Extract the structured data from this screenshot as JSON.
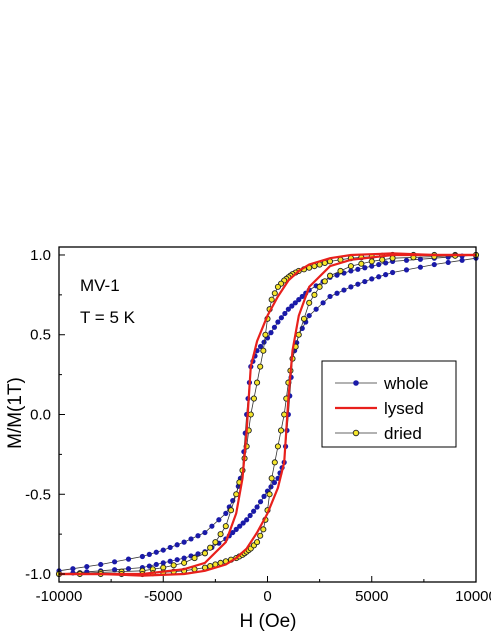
{
  "chart_data": {
    "type": "line",
    "title": "",
    "xlabel": "H (Oe)",
    "ylabel": "M/M(1T)",
    "xlim": [
      -10000,
      10000
    ],
    "ylim": [
      -1.05,
      1.05
    ],
    "xticks": [
      -10000,
      -5000,
      0,
      5000,
      10000
    ],
    "xtick_labels": [
      "-10000",
      "-5000",
      "0",
      "5000",
      "10000"
    ],
    "yticks": [
      -1.0,
      -0.5,
      0.0,
      0.5,
      1.0
    ],
    "ytick_labels": [
      "-1.0",
      "-0.5",
      "0.0",
      "0.5",
      "1.0"
    ],
    "grid": false,
    "legend_position": "center-right",
    "annotations": [
      "MV-1",
      "T = 5 K"
    ],
    "series": [
      {
        "name": "whole",
        "color": "#1a1aa8",
        "style": "line+filled-dots",
        "branch_descending": {
          "x": [
            10000,
            8000,
            6000,
            5000,
            4000,
            3000,
            2000,
            1500,
            1000,
            500,
            0,
            -500,
            -800,
            -1000,
            -1200,
            -1500,
            -2000,
            -3000,
            -4000,
            -5000,
            -6000,
            -8000,
            -10000
          ],
          "y": [
            1.0,
            0.98,
            0.96,
            0.93,
            0.9,
            0.86,
            0.78,
            0.72,
            0.66,
            0.58,
            0.48,
            0.4,
            0.3,
            0.0,
            -0.35,
            -0.5,
            -0.62,
            -0.74,
            -0.8,
            -0.85,
            -0.89,
            -0.94,
            -0.98
          ]
        },
        "branch_ascending": {
          "x": [
            -10000,
            -8000,
            -6000,
            -5000,
            -4000,
            -3000,
            -2000,
            -1500,
            -1000,
            -500,
            0,
            500,
            800,
            1000,
            1200,
            1500,
            2000,
            3000,
            4000,
            5000,
            6000,
            8000,
            10000
          ],
          "y": [
            -1.0,
            -0.98,
            -0.96,
            -0.93,
            -0.9,
            -0.86,
            -0.78,
            -0.72,
            -0.66,
            -0.58,
            -0.48,
            -0.4,
            -0.3,
            0.0,
            0.35,
            0.5,
            0.62,
            0.74,
            0.8,
            0.85,
            0.89,
            0.94,
            0.98
          ]
        }
      },
      {
        "name": "lysed",
        "color": "#e8201c",
        "style": "line",
        "branch_descending": {
          "x": [
            10000,
            8000,
            6000,
            4000,
            3000,
            2000,
            1500,
            1000,
            500,
            0,
            -500,
            -800,
            -900,
            -1000,
            -1200,
            -1500,
            -2000,
            -3000,
            -4000,
            -6000,
            -8000,
            -10000
          ],
          "y": [
            1.0,
            1.0,
            1.01,
            1.0,
            0.98,
            0.94,
            0.9,
            0.84,
            0.74,
            0.62,
            0.46,
            0.3,
            0.1,
            -0.1,
            -0.4,
            -0.62,
            -0.8,
            -0.93,
            -0.97,
            -1.0,
            -1.0,
            -1.0
          ]
        },
        "branch_ascending": {
          "x": [
            -10000,
            -8000,
            -6000,
            -4000,
            -3000,
            -2000,
            -1500,
            -1000,
            -500,
            0,
            500,
            800,
            900,
            1000,
            1200,
            1500,
            2000,
            3000,
            4000,
            6000,
            8000,
            10000
          ],
          "y": [
            -1.0,
            -1.0,
            -1.01,
            -1.0,
            -0.98,
            -0.94,
            -0.9,
            -0.84,
            -0.74,
            -0.62,
            -0.46,
            -0.3,
            -0.1,
            0.1,
            0.4,
            0.62,
            0.8,
            0.93,
            0.97,
            1.0,
            1.0,
            1.0
          ]
        }
      },
      {
        "name": "dried",
        "color": "#f5e62a",
        "edge_color": "#222222",
        "style": "line+open-yellow-dots",
        "branch_descending": {
          "x": [
            10000,
            8000,
            6000,
            5000,
            4000,
            3000,
            2500,
            2000,
            1500,
            1200,
            1000,
            800,
            500,
            200,
            0,
            -200,
            -500,
            -800,
            -1000,
            -1200,
            -1500,
            -2000,
            -2500,
            -3000,
            -4000,
            -5000,
            -6000,
            -8000,
            -10000
          ],
          "y": [
            1.0,
            1.0,
            1.0,
            0.99,
            0.98,
            0.96,
            0.94,
            0.92,
            0.9,
            0.88,
            0.86,
            0.84,
            0.8,
            0.72,
            0.6,
            0.4,
            0.2,
            0.0,
            -0.2,
            -0.35,
            -0.5,
            -0.7,
            -0.8,
            -0.87,
            -0.93,
            -0.96,
            -0.98,
            -0.99,
            -1.0
          ]
        },
        "branch_ascending": {
          "x": [
            -10000,
            -8000,
            -6000,
            -5000,
            -4000,
            -3000,
            -2500,
            -2000,
            -1500,
            -1200,
            -1000,
            -800,
            -500,
            -200,
            0,
            200,
            500,
            800,
            1000,
            1200,
            1500,
            2000,
            2500,
            3000,
            4000,
            5000,
            6000,
            8000,
            10000
          ],
          "y": [
            -1.0,
            -1.0,
            -1.0,
            -0.99,
            -0.98,
            -0.96,
            -0.94,
            -0.92,
            -0.9,
            -0.88,
            -0.86,
            -0.84,
            -0.8,
            -0.72,
            -0.6,
            -0.4,
            -0.2,
            0.0,
            0.2,
            0.35,
            0.5,
            0.7,
            0.8,
            0.87,
            0.93,
            0.96,
            0.98,
            0.99,
            1.0
          ]
        }
      }
    ]
  }
}
